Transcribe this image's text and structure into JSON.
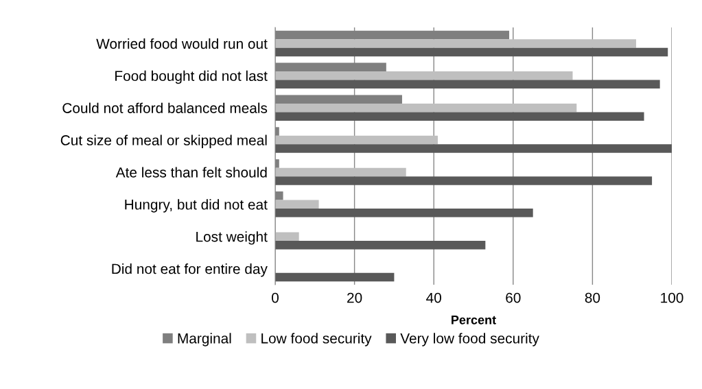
{
  "chart_data": {
    "type": "bar",
    "orientation": "horizontal",
    "xlabel": "Percent",
    "categories": [
      "Worried food would run out",
      "Food bought did not last",
      "Could not afford balanced meals",
      "Cut size of meal or skipped meal",
      "Ate less than felt should",
      "Hungry, but did not eat",
      "Lost weight",
      "Did not eat for entire day"
    ],
    "series": [
      {
        "name": "Marginal",
        "color": "#7f7f7f",
        "values": [
          59,
          28,
          32,
          1,
          1,
          2,
          0,
          0
        ]
      },
      {
        "name": "Low food security",
        "color": "#bfbfbf",
        "values": [
          91,
          75,
          76,
          41,
          33,
          11,
          6,
          0
        ]
      },
      {
        "name": "Very low food security",
        "color": "#595959",
        "values": [
          99,
          97,
          93,
          100,
          95,
          65,
          53,
          30
        ]
      }
    ],
    "xlim": [
      0,
      100
    ],
    "xticks": [
      0,
      20,
      40,
      60,
      80,
      100
    ],
    "grid": "x",
    "legend": "bottom"
  }
}
